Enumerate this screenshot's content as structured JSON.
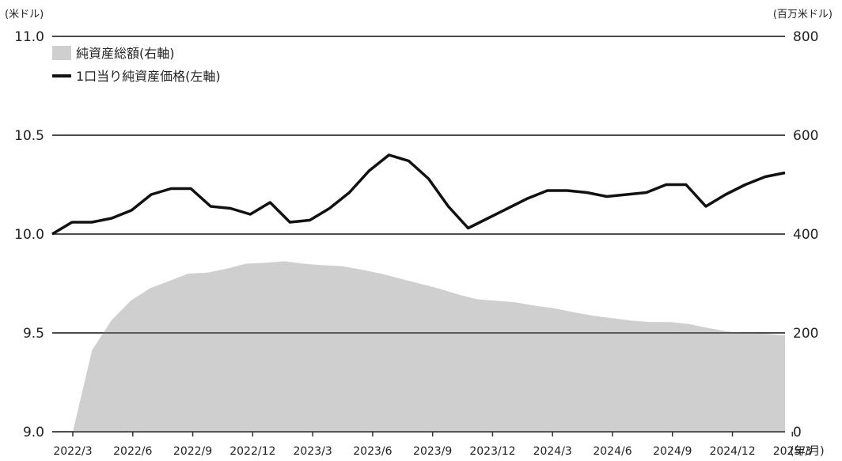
{
  "chart_data": {
    "type": "line",
    "left_unit": "(米ドル)",
    "right_unit": "(百万米ドル)",
    "x_unit": "(年/月)",
    "left_axis": {
      "ticks": [
        "11.0",
        "10.5",
        "10.0",
        "9.5",
        "9.0"
      ],
      "range": [
        9.0,
        11.0
      ]
    },
    "right_axis": {
      "ticks": [
        "800",
        "600",
        "400",
        "200",
        "0"
      ],
      "range": [
        0,
        800
      ]
    },
    "x_ticks": [
      "2022/3",
      "2022/6",
      "2022/9",
      "2022/12",
      "2023/3",
      "2023/6",
      "2023/9",
      "2023/12",
      "2024/3",
      "2024/6",
      "2024/9",
      "2024/12",
      "2025/3"
    ],
    "legend": {
      "area_label": "純資産総額(右軸)",
      "line_label": "1口当り純資産価格(左軸)"
    },
    "series": [
      {
        "name": "1口当り純資産価格(左軸)",
        "axis": "left",
        "type": "line",
        "color": "#111111",
        "values": [
          10.0,
          10.06,
          10.06,
          10.08,
          10.12,
          10.2,
          10.23,
          10.23,
          10.14,
          10.13,
          10.1,
          10.16,
          10.06,
          10.07,
          10.13,
          10.21,
          10.32,
          10.4,
          10.37,
          10.28,
          10.14,
          10.03,
          10.08,
          10.13,
          10.18,
          10.22,
          10.22,
          10.21,
          10.19,
          10.2,
          10.21,
          10.25,
          10.25,
          10.14,
          10.2,
          10.25,
          10.29,
          10.31
        ]
      },
      {
        "name": "純資産総額(右軸)",
        "axis": "right",
        "type": "area",
        "color": "#cfcfcf",
        "values": [
          0,
          165,
          225,
          265,
          290,
          305,
          320,
          322,
          330,
          340,
          342,
          345,
          340,
          337,
          335,
          328,
          320,
          310,
          300,
          290,
          278,
          268,
          265,
          262,
          255,
          250,
          242,
          235,
          230,
          225,
          222,
          222,
          218,
          210,
          203,
          200,
          198,
          195
        ]
      }
    ]
  }
}
